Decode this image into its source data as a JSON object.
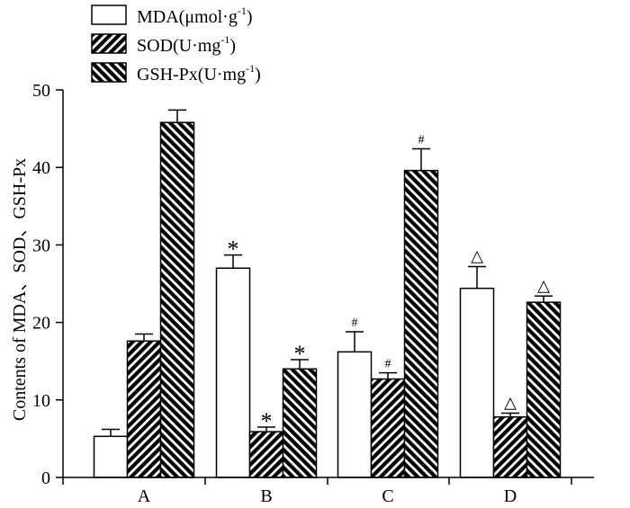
{
  "chart_data": {
    "type": "bar",
    "title": "",
    "xlabel": "",
    "ylabel": "Contents of MDA、SOD、GSH-Px",
    "ylim": [
      0,
      50
    ],
    "yticks": [
      0,
      10,
      20,
      30,
      40,
      50
    ],
    "categories": [
      "A",
      "B",
      "C",
      "D"
    ],
    "series": [
      {
        "name": "MDA",
        "unit": "μmol·g",
        "unit_exp": "-1",
        "pattern": "white",
        "values": [
          5.3,
          27.0,
          16.2,
          24.4
        ],
        "errors": [
          0.9,
          1.7,
          2.6,
          2.8
        ],
        "markers": [
          "",
          "*",
          "#",
          "△"
        ]
      },
      {
        "name": "SOD",
        "unit": "U·mg",
        "unit_exp": "-1",
        "pattern": "hatch-forward",
        "values": [
          17.6,
          5.9,
          12.7,
          7.8
        ],
        "errors": [
          0.9,
          0.6,
          0.8,
          0.5
        ],
        "markers": [
          "",
          "*",
          "#",
          "△"
        ]
      },
      {
        "name": "GSH-Px",
        "unit": "U·mg",
        "unit_exp": "-1",
        "pattern": "hatch-back",
        "values": [
          45.8,
          14.0,
          39.6,
          22.6
        ],
        "errors": [
          1.6,
          1.2,
          2.8,
          0.8
        ],
        "markers": [
          "",
          "*",
          "#",
          "△"
        ]
      }
    ]
  }
}
